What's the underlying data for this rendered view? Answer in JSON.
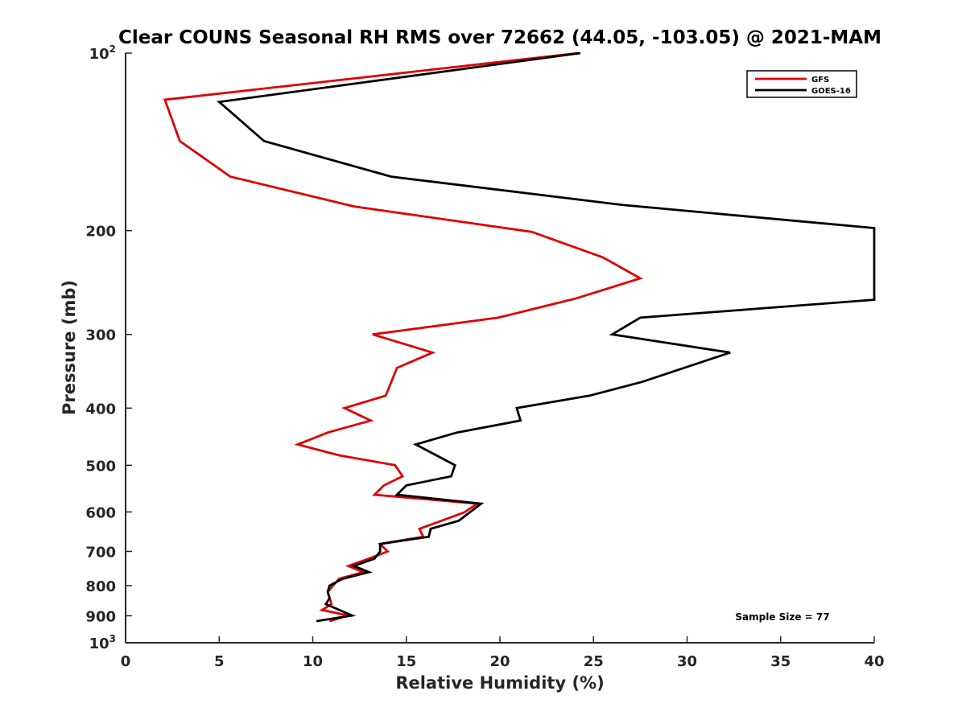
{
  "chart_data": {
    "type": "line",
    "title": "Clear COUNS Seasonal RH RMS over 72662 (44.05, -103.05) @ 2021-MAM",
    "xlabel": "Relative Humidity (%)",
    "ylabel": "Pressure (mb)",
    "xlim": [
      0,
      40
    ],
    "ylim": [
      100,
      1000
    ],
    "yscale": "log",
    "y_reversed": true,
    "x_ticks": [
      {
        "value": 0,
        "label": "0"
      },
      {
        "value": 5,
        "label": "5"
      },
      {
        "value": 10,
        "label": "10"
      },
      {
        "value": 15,
        "label": "15"
      },
      {
        "value": 20,
        "label": "20"
      },
      {
        "value": 25,
        "label": "25"
      },
      {
        "value": 30,
        "label": "30"
      },
      {
        "value": 35,
        "label": "35"
      },
      {
        "value": 40,
        "label": "40"
      }
    ],
    "y_ticks": [
      {
        "value": 100,
        "label": "10",
        "sup": "2"
      },
      {
        "value": 200,
        "label": "200"
      },
      {
        "value": 300,
        "label": "300"
      },
      {
        "value": 400,
        "label": "400"
      },
      {
        "value": 500,
        "label": "500"
      },
      {
        "value": 600,
        "label": "600"
      },
      {
        "value": 700,
        "label": "700"
      },
      {
        "value": 800,
        "label": "800"
      },
      {
        "value": 900,
        "label": "900"
      },
      {
        "value": 1000,
        "label": "10",
        "sup": "3"
      }
    ],
    "legend_position": "top-right",
    "annotation": "Sample Size = 77",
    "series": [
      {
        "name": "GFS",
        "color": "#e00000",
        "points": [
          {
            "x": 24.2,
            "y": 100
          },
          {
            "x": 2.1,
            "y": 120
          },
          {
            "x": 2.9,
            "y": 141
          },
          {
            "x": 5.6,
            "y": 162
          },
          {
            "x": 12.2,
            "y": 182
          },
          {
            "x": 21.7,
            "y": 201
          },
          {
            "x": 25.5,
            "y": 222
          },
          {
            "x": 27.5,
            "y": 241
          },
          {
            "x": 24.0,
            "y": 261
          },
          {
            "x": 19.9,
            "y": 281
          },
          {
            "x": 13.2,
            "y": 300
          },
          {
            "x": 16.4,
            "y": 322
          },
          {
            "x": 14.5,
            "y": 342
          },
          {
            "x": 13.9,
            "y": 381
          },
          {
            "x": 11.7,
            "y": 400
          },
          {
            "x": 13.1,
            "y": 420
          },
          {
            "x": 10.8,
            "y": 440
          },
          {
            "x": 9.2,
            "y": 461
          },
          {
            "x": 11.4,
            "y": 481
          },
          {
            "x": 14.4,
            "y": 500
          },
          {
            "x": 14.8,
            "y": 522
          },
          {
            "x": 13.8,
            "y": 541
          },
          {
            "x": 13.3,
            "y": 561
          },
          {
            "x": 18.8,
            "y": 581
          },
          {
            "x": 18.1,
            "y": 601
          },
          {
            "x": 15.7,
            "y": 641
          },
          {
            "x": 15.9,
            "y": 661
          },
          {
            "x": 13.6,
            "y": 680
          },
          {
            "x": 14.0,
            "y": 700
          },
          {
            "x": 13.0,
            "y": 720
          },
          {
            "x": 11.9,
            "y": 741
          },
          {
            "x": 12.7,
            "y": 759
          },
          {
            "x": 11.4,
            "y": 779
          },
          {
            "x": 10.8,
            "y": 820
          },
          {
            "x": 11.0,
            "y": 860
          },
          {
            "x": 10.5,
            "y": 880
          },
          {
            "x": 11.9,
            "y": 899
          },
          {
            "x": 10.9,
            "y": 919
          }
        ]
      },
      {
        "name": "GOES-16",
        "color": "#000000",
        "points": [
          {
            "x": 24.3,
            "y": 100
          },
          {
            "x": 5.0,
            "y": 121
          },
          {
            "x": 7.4,
            "y": 141
          },
          {
            "x": 14.2,
            "y": 162
          },
          {
            "x": 26.6,
            "y": 181
          },
          {
            "x": 40.0,
            "y": 198
          },
          {
            "x": 40.0,
            "y": 262
          },
          {
            "x": 27.5,
            "y": 281
          },
          {
            "x": 26.0,
            "y": 300
          },
          {
            "x": 32.3,
            "y": 322
          },
          {
            "x": 27.6,
            "y": 361
          },
          {
            "x": 24.8,
            "y": 381
          },
          {
            "x": 20.9,
            "y": 400
          },
          {
            "x": 21.1,
            "y": 420
          },
          {
            "x": 17.7,
            "y": 440
          },
          {
            "x": 15.5,
            "y": 461
          },
          {
            "x": 16.6,
            "y": 481
          },
          {
            "x": 17.6,
            "y": 500
          },
          {
            "x": 17.4,
            "y": 522
          },
          {
            "x": 15.0,
            "y": 541
          },
          {
            "x": 14.5,
            "y": 561
          },
          {
            "x": 19.0,
            "y": 581
          },
          {
            "x": 17.8,
            "y": 621
          },
          {
            "x": 16.3,
            "y": 641
          },
          {
            "x": 16.2,
            "y": 661
          },
          {
            "x": 13.6,
            "y": 680
          },
          {
            "x": 13.6,
            "y": 700
          },
          {
            "x": 13.3,
            "y": 720
          },
          {
            "x": 12.2,
            "y": 741
          },
          {
            "x": 13.0,
            "y": 759
          },
          {
            "x": 11.6,
            "y": 779
          },
          {
            "x": 10.9,
            "y": 800
          },
          {
            "x": 10.8,
            "y": 820
          },
          {
            "x": 10.9,
            "y": 840
          },
          {
            "x": 10.7,
            "y": 860
          },
          {
            "x": 12.1,
            "y": 899
          },
          {
            "x": 10.2,
            "y": 919
          }
        ]
      }
    ]
  }
}
